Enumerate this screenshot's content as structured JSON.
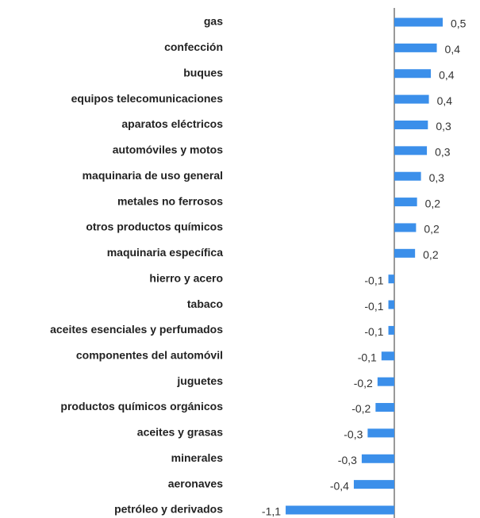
{
  "chart_data": {
    "type": "barh",
    "categories": [
      "gas",
      "confección",
      "buques",
      "equipos telecomunicaciones",
      "aparatos eléctricos",
      "automóviles y motos",
      "maquinaria de uso general",
      "metales no ferrosos",
      "otros productos químicos",
      "maquinaria específica",
      "hierro y acero",
      "tabaco",
      "aceites esenciales y perfumados",
      "componentes del automóvil",
      "juguetes",
      "productos químicos orgánicos",
      "aceites y grasas",
      "minerales",
      "aeronaves",
      "petróleo y derivados"
    ],
    "values": [
      0.49,
      0.43,
      0.37,
      0.35,
      0.34,
      0.33,
      0.27,
      0.23,
      0.22,
      0.21,
      -0.06,
      -0.06,
      -0.06,
      -0.13,
      -0.17,
      -0.19,
      -0.27,
      -0.33,
      -0.41,
      -1.1
    ],
    "value_labels": [
      "0,5",
      "0,4",
      "0,4",
      "0,4",
      "0,3",
      "0,3",
      "0,3",
      "0,2",
      "0,2",
      "0,2",
      "-0,1",
      "-0,1",
      "-0,1",
      "-0,1",
      "-0,2",
      "-0,2",
      "-0,3",
      "-0,3",
      "-0,4",
      "-1,1"
    ],
    "color": "#3b8fea",
    "xlim": [
      -1.2,
      0.8
    ]
  }
}
